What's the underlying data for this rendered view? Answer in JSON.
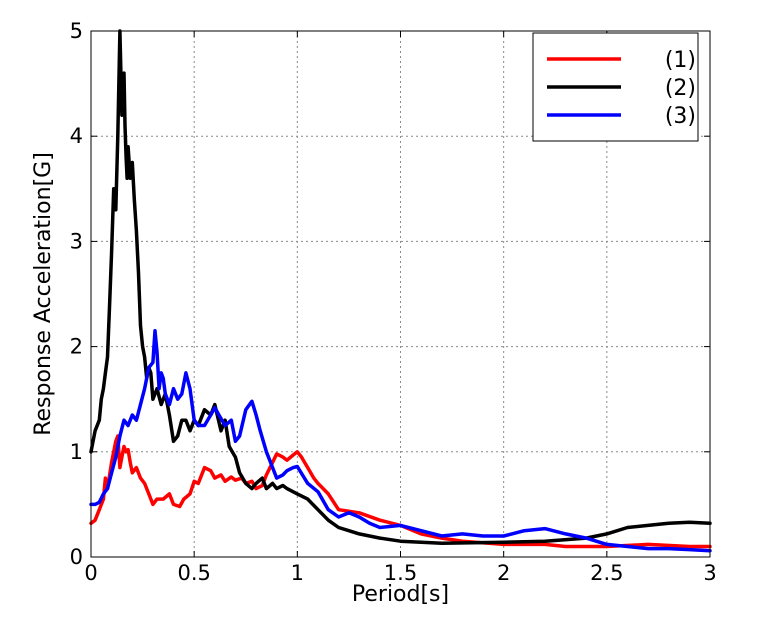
{
  "chart_data": {
    "type": "line",
    "title": "",
    "xlabel": "Period[s]",
    "ylabel": "Response Acceleration[G]",
    "xlim": [
      0,
      3
    ],
    "ylim": [
      0,
      5
    ],
    "xticks": [
      0,
      0.5,
      1,
      1.5,
      2,
      2.5,
      3
    ],
    "xtick_labels": [
      "0",
      "0.5",
      "1",
      "1.5",
      "2",
      "2.5",
      "3"
    ],
    "yticks": [
      0,
      1,
      2,
      3,
      4,
      5
    ],
    "ytick_labels": [
      "0",
      "1",
      "2",
      "3",
      "4",
      "5"
    ],
    "grid": true,
    "legend_position": "top-right",
    "series": [
      {
        "name": "(1)",
        "color": "#ff0000",
        "x": [
          0.0,
          0.02,
          0.04,
          0.06,
          0.07,
          0.08,
          0.1,
          0.12,
          0.13,
          0.14,
          0.15,
          0.16,
          0.17,
          0.18,
          0.19,
          0.2,
          0.22,
          0.24,
          0.26,
          0.28,
          0.3,
          0.32,
          0.35,
          0.38,
          0.4,
          0.43,
          0.45,
          0.48,
          0.5,
          0.52,
          0.55,
          0.58,
          0.6,
          0.63,
          0.65,
          0.68,
          0.7,
          0.73,
          0.75,
          0.78,
          0.8,
          0.83,
          0.85,
          0.88,
          0.9,
          0.93,
          0.95,
          0.98,
          1.0,
          1.02,
          1.05,
          1.08,
          1.1,
          1.15,
          1.2,
          1.3,
          1.4,
          1.5,
          1.6,
          1.7,
          1.8,
          2.0,
          2.2,
          2.3,
          2.5,
          2.7,
          2.9,
          3.0
        ],
        "y": [
          0.32,
          0.35,
          0.45,
          0.55,
          0.75,
          0.65,
          0.9,
          1.1,
          1.15,
          0.85,
          0.95,
          1.05,
          1.0,
          1.02,
          0.9,
          0.8,
          0.85,
          0.75,
          0.7,
          0.6,
          0.5,
          0.55,
          0.55,
          0.6,
          0.5,
          0.48,
          0.55,
          0.6,
          0.72,
          0.7,
          0.85,
          0.82,
          0.75,
          0.78,
          0.72,
          0.76,
          0.73,
          0.75,
          0.7,
          0.72,
          0.65,
          0.68,
          0.78,
          0.9,
          0.98,
          0.95,
          0.92,
          0.97,
          1.0,
          0.95,
          0.85,
          0.75,
          0.7,
          0.6,
          0.45,
          0.42,
          0.35,
          0.3,
          0.22,
          0.18,
          0.15,
          0.12,
          0.12,
          0.1,
          0.1,
          0.12,
          0.1,
          0.1
        ]
      },
      {
        "name": "(2)",
        "color": "#000000",
        "x": [
          0.0,
          0.02,
          0.03,
          0.04,
          0.05,
          0.06,
          0.07,
          0.08,
          0.09,
          0.1,
          0.11,
          0.12,
          0.13,
          0.14,
          0.15,
          0.16,
          0.165,
          0.17,
          0.175,
          0.18,
          0.19,
          0.2,
          0.21,
          0.22,
          0.23,
          0.24,
          0.25,
          0.26,
          0.27,
          0.28,
          0.29,
          0.3,
          0.32,
          0.34,
          0.36,
          0.38,
          0.4,
          0.42,
          0.44,
          0.46,
          0.48,
          0.5,
          0.52,
          0.55,
          0.58,
          0.6,
          0.63,
          0.65,
          0.67,
          0.7,
          0.72,
          0.75,
          0.78,
          0.8,
          0.83,
          0.85,
          0.88,
          0.9,
          0.93,
          0.95,
          1.0,
          1.05,
          1.1,
          1.15,
          1.2,
          1.25,
          1.3,
          1.4,
          1.5,
          1.7,
          2.0,
          2.2,
          2.4,
          2.5,
          2.6,
          2.7,
          2.8,
          2.9,
          3.0
        ],
        "y": [
          1.0,
          1.2,
          1.25,
          1.3,
          1.5,
          1.6,
          1.75,
          1.9,
          2.4,
          2.9,
          3.5,
          3.3,
          4.0,
          5.0,
          4.2,
          4.6,
          4.1,
          3.8,
          3.6,
          3.9,
          3.6,
          3.75,
          3.4,
          3.1,
          2.7,
          2.2,
          2.0,
          1.9,
          1.7,
          1.8,
          1.75,
          1.5,
          1.6,
          1.45,
          1.55,
          1.35,
          1.1,
          1.15,
          1.3,
          1.3,
          1.2,
          1.3,
          1.25,
          1.4,
          1.35,
          1.45,
          1.2,
          1.3,
          1.05,
          0.95,
          0.8,
          0.7,
          0.65,
          0.7,
          0.75,
          0.65,
          0.7,
          0.65,
          0.68,
          0.65,
          0.6,
          0.55,
          0.45,
          0.35,
          0.28,
          0.25,
          0.22,
          0.18,
          0.15,
          0.13,
          0.14,
          0.15,
          0.18,
          0.22,
          0.28,
          0.3,
          0.32,
          0.33,
          0.32
        ]
      },
      {
        "name": "(3)",
        "color": "#0000ff",
        "x": [
          0.0,
          0.02,
          0.04,
          0.06,
          0.08,
          0.1,
          0.12,
          0.14,
          0.16,
          0.18,
          0.2,
          0.22,
          0.24,
          0.26,
          0.28,
          0.3,
          0.31,
          0.32,
          0.33,
          0.34,
          0.35,
          0.36,
          0.38,
          0.4,
          0.42,
          0.44,
          0.46,
          0.48,
          0.5,
          0.52,
          0.55,
          0.58,
          0.6,
          0.62,
          0.65,
          0.68,
          0.7,
          0.72,
          0.75,
          0.78,
          0.8,
          0.82,
          0.85,
          0.88,
          0.9,
          0.93,
          0.95,
          0.98,
          1.0,
          1.05,
          1.1,
          1.15,
          1.2,
          1.25,
          1.3,
          1.35,
          1.4,
          1.5,
          1.6,
          1.7,
          1.8,
          1.9,
          2.0,
          2.1,
          2.2,
          2.3,
          2.4,
          2.5,
          2.6,
          2.7,
          2.8,
          2.9,
          3.0
        ],
        "y": [
          0.5,
          0.5,
          0.52,
          0.6,
          0.65,
          0.8,
          0.95,
          1.15,
          1.3,
          1.25,
          1.35,
          1.3,
          1.45,
          1.6,
          1.8,
          1.85,
          2.15,
          1.95,
          1.6,
          1.75,
          1.7,
          1.55,
          1.45,
          1.6,
          1.5,
          1.55,
          1.75,
          1.6,
          1.3,
          1.25,
          1.25,
          1.35,
          1.42,
          1.35,
          1.25,
          1.3,
          1.1,
          1.15,
          1.4,
          1.48,
          1.35,
          1.2,
          1.0,
          0.85,
          0.75,
          0.78,
          0.82,
          0.85,
          0.86,
          0.7,
          0.62,
          0.45,
          0.38,
          0.42,
          0.38,
          0.32,
          0.28,
          0.3,
          0.25,
          0.2,
          0.22,
          0.2,
          0.2,
          0.25,
          0.27,
          0.22,
          0.18,
          0.12,
          0.1,
          0.08,
          0.08,
          0.07,
          0.06
        ]
      }
    ]
  }
}
